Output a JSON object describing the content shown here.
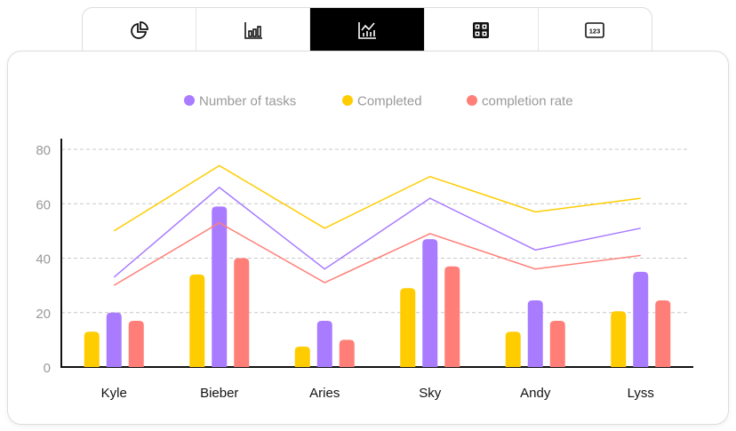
{
  "tabs": [
    {
      "icon": "pie-chart-icon",
      "active": false
    },
    {
      "icon": "bar-chart-icon",
      "active": false
    },
    {
      "icon": "line-bar-chart-icon",
      "active": true
    },
    {
      "icon": "grid-table-icon",
      "active": false
    },
    {
      "icon": "number-card-icon",
      "label": "123",
      "active": false
    }
  ],
  "chart_data": {
    "type": "bar",
    "categories": [
      "Kyle",
      "Bieber",
      "Aries",
      "Sky",
      "Andy",
      "Lyss"
    ],
    "ylim": [
      0,
      80
    ],
    "yticks": [
      0,
      20,
      40,
      60,
      80
    ],
    "grid": true,
    "legend_position": "top",
    "bars": [
      {
        "name": "Completed",
        "color": "#FFCC00",
        "values": [
          13,
          34,
          7.5,
          29,
          13,
          20.5
        ]
      },
      {
        "name": "Number of tasks",
        "color": "#A97BFF",
        "values": [
          20,
          59,
          17,
          47,
          24.5,
          35
        ]
      },
      {
        "name": "completion rate",
        "color": "#FF7F78",
        "values": [
          17,
          40,
          10,
          37,
          17,
          24.5
        ]
      }
    ],
    "lines": [
      {
        "color": "#FFCC00",
        "values": [
          50,
          74,
          51,
          70,
          57,
          62
        ]
      },
      {
        "color": "#A97BFF",
        "values": [
          33,
          66,
          36,
          62,
          43,
          51
        ]
      },
      {
        "color": "#FF7F78",
        "values": [
          30,
          53,
          31,
          49,
          36,
          41
        ]
      }
    ],
    "legend": [
      {
        "name": "Number of tasks",
        "color": "#A97BFF"
      },
      {
        "name": "Completed",
        "color": "#FFCC00"
      },
      {
        "name": "completion rate",
        "color": "#FF7F78"
      }
    ]
  }
}
